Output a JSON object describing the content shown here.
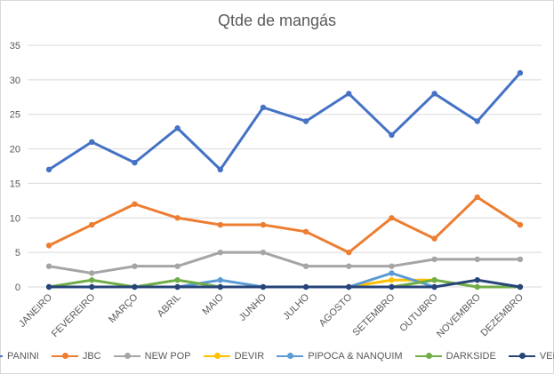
{
  "chart_data": {
    "type": "line",
    "title": "Qtde de mangás",
    "xlabel": "",
    "ylabel": "",
    "ylim": [
      0,
      35
    ],
    "yticks": [
      0,
      5,
      10,
      15,
      20,
      25,
      30,
      35
    ],
    "categories": [
      "JANEIRO",
      "FEVEREIRO",
      "MARÇO",
      "ABRIL",
      "MAIO",
      "JUNHO",
      "JULHO",
      "AGOSTO",
      "SETEMBRO",
      "OUTUBRO",
      "NOVEMBRO",
      "DEZEMBRO"
    ],
    "legend_position": "bottom",
    "grid": true,
    "series": [
      {
        "name": "PANINI",
        "color": "#4472C4",
        "values": [
          17,
          21,
          18,
          23,
          17,
          26,
          24,
          28,
          22,
          28,
          24,
          31
        ]
      },
      {
        "name": "JBC",
        "color": "#ED7D31",
        "values": [
          6,
          9,
          12,
          10,
          9,
          9,
          8,
          5,
          10,
          7,
          13,
          9
        ]
      },
      {
        "name": "NEW POP",
        "color": "#A5A5A5",
        "values": [
          3,
          2,
          3,
          3,
          5,
          5,
          3,
          3,
          3,
          4,
          4,
          4
        ]
      },
      {
        "name": "DEVIR",
        "color": "#FFC000",
        "values": [
          null,
          null,
          null,
          null,
          null,
          null,
          null,
          0,
          1,
          1,
          null,
          null
        ]
      },
      {
        "name": "PIPOCA & NANQUIM",
        "color": "#5B9BD5",
        "values": [
          null,
          null,
          null,
          0,
          1,
          0,
          null,
          0,
          2,
          0,
          null,
          null
        ]
      },
      {
        "name": "DARKSIDE",
        "color": "#70AD47",
        "values": [
          0,
          1,
          0,
          1,
          0,
          null,
          null,
          null,
          0,
          1,
          0,
          0
        ]
      },
      {
        "name": "VENETA",
        "color": "#264478",
        "values": [
          0,
          0,
          0,
          0,
          0,
          0,
          0,
          0,
          0,
          0,
          1,
          0
        ]
      }
    ]
  }
}
